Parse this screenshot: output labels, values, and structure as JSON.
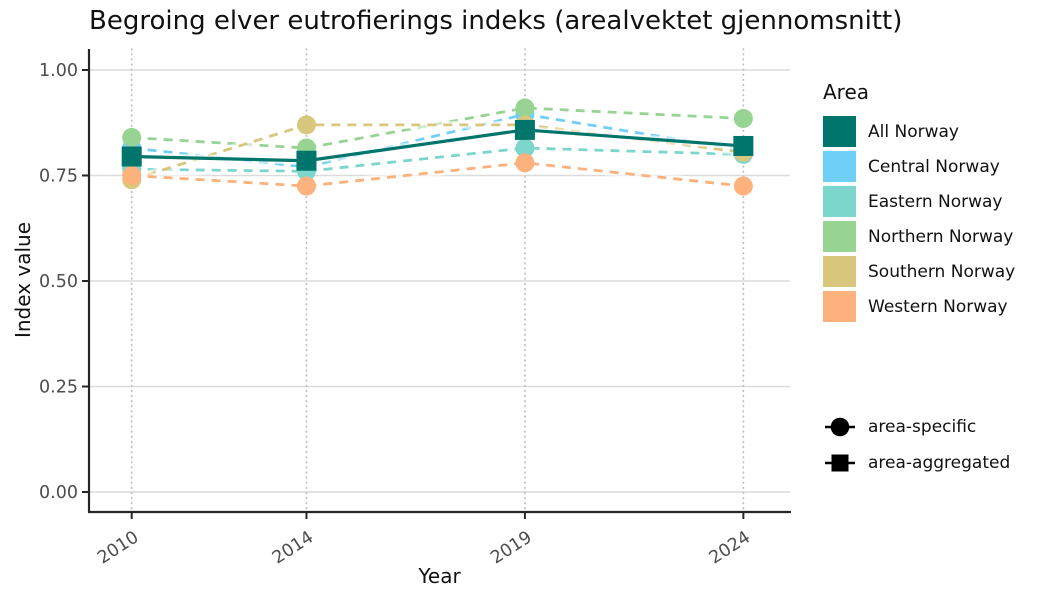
{
  "title": "Begroing elver eutrofierings indeks (arealvektet gjennomsnitt)",
  "legend": {
    "title": "Area",
    "items": [
      {
        "label": "All Norway",
        "color": "#00756C"
      },
      {
        "label": "Central Norway",
        "color": "#6FCFF7"
      },
      {
        "label": "Eastern Norway",
        "color": "#7CD6CB"
      },
      {
        "label": "Northern Norway",
        "color": "#97D392"
      },
      {
        "label": "Southern Norway",
        "color": "#D9C77D"
      },
      {
        "label": "Western Norway",
        "color": "#FDB17C"
      }
    ]
  },
  "shape_legend": {
    "items": [
      {
        "label": "area-specific",
        "marker": "circle"
      },
      {
        "label": "area-aggregated",
        "marker": "square"
      }
    ]
  },
  "chart_data": {
    "type": "line",
    "title": "Begroing elver eutrofierings indeks (arealvektet gjennomsnitt)",
    "xlabel": "Year",
    "ylabel": "Index value",
    "x": [
      2010,
      2014,
      2019,
      2024
    ],
    "x_tick_labels": [
      "2010",
      "2014",
      "2019",
      "2024"
    ],
    "y_ticks": [
      0,
      0.25,
      0.5,
      0.75,
      1
    ],
    "y_tick_labels": [
      "0.00",
      "0.25",
      "0.50",
      "0.75",
      "1.00"
    ],
    "ylim": [
      0,
      1.05
    ],
    "grid": true,
    "legend_position": "right",
    "series": [
      {
        "name": "All Norway",
        "color": "#00756C",
        "line": "solid",
        "marker": "square",
        "group": "area-aggregated",
        "values": [
          0.795,
          0.785,
          0.858,
          0.82
        ]
      },
      {
        "name": "Central Norway",
        "color": "#6FCFF7",
        "line": "dashed",
        "marker": "circle",
        "group": "area-specific",
        "values": [
          0.815,
          0.77,
          0.895,
          0.81
        ]
      },
      {
        "name": "Eastern Norway",
        "color": "#7CD6CB",
        "line": "dashed",
        "marker": "circle",
        "group": "area-specific",
        "values": [
          0.765,
          0.76,
          0.815,
          0.8
        ]
      },
      {
        "name": "Northern Norway",
        "color": "#97D392",
        "line": "dashed",
        "marker": "circle",
        "group": "area-specific",
        "values": [
          0.84,
          0.815,
          0.91,
          0.885
        ]
      },
      {
        "name": "Southern Norway",
        "color": "#D9C77D",
        "line": "dashed",
        "marker": "circle",
        "group": "area-specific",
        "values": [
          0.74,
          0.87,
          0.87,
          0.805
        ]
      },
      {
        "name": "Western Norway",
        "color": "#FDB17C",
        "line": "dashed",
        "marker": "circle",
        "group": "area-specific",
        "values": [
          0.75,
          0.725,
          0.78,
          0.725
        ]
      }
    ]
  }
}
